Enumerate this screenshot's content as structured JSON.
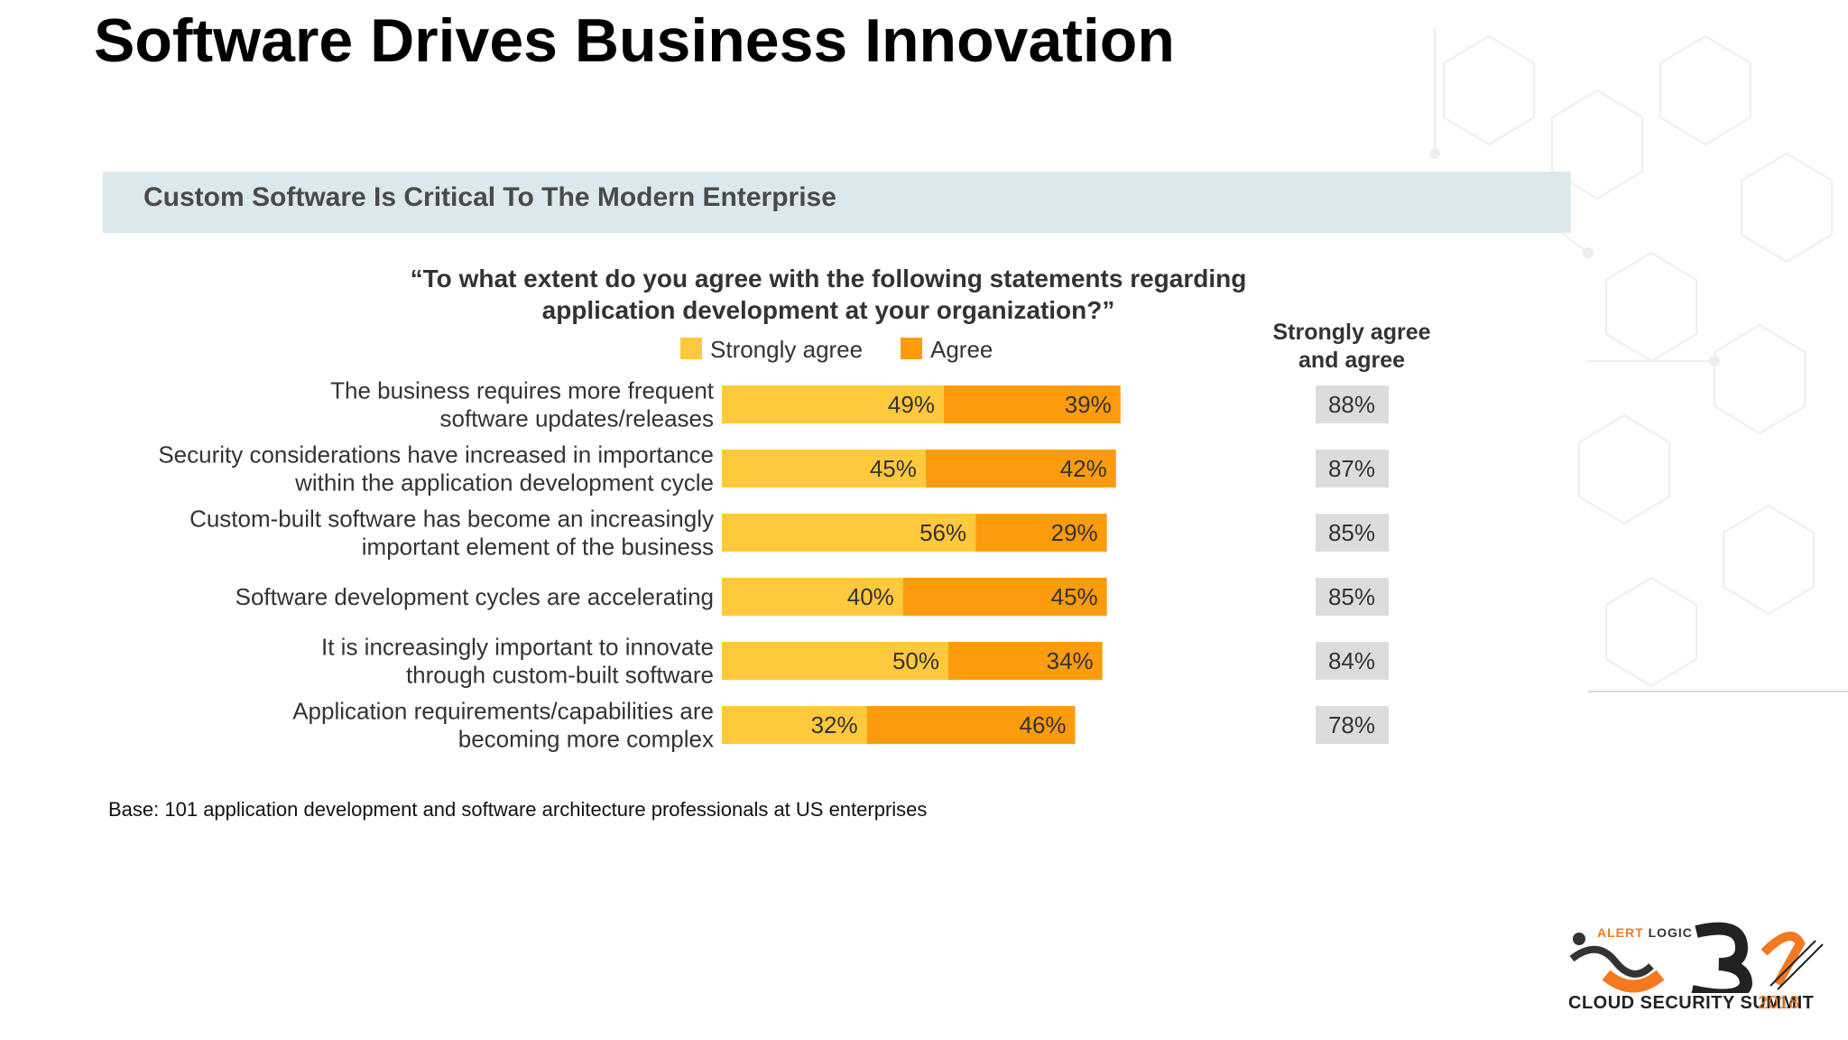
{
  "page": {
    "title": "Software Drives Business Innovation"
  },
  "chart_header": "Custom Software Is Critical To The Modern Enterprise",
  "footnote": "Base: 101 application development and software architecture professionals at US enterprises",
  "brand": {
    "name_part1": "ALERT",
    "name_part2": "LOGIC",
    "tagline": "CLOUD SECURITY SUMMIT",
    "year": "2018"
  },
  "colors": {
    "strongly_agree": "#ffc83d",
    "agree": "#fc9c0d",
    "total_box": "#dcdcdc",
    "header_band": "#dce9ec"
  },
  "chart_data": {
    "type": "bar",
    "orientation": "horizontal",
    "stacked": true,
    "question_lines": [
      "“To what extent do you agree with the following statements regarding",
      "application development at your organization?”"
    ],
    "total_header_lines": [
      "Strongly agree",
      "and agree"
    ],
    "value_suffix": "%",
    "categories": [
      [
        "The business requires more frequent",
        "software updates/releases"
      ],
      [
        "Security considerations have increased in importance",
        "within the application development cycle"
      ],
      [
        "Custom-built software has become an increasingly",
        "important element of the business"
      ],
      [
        "Software development cycles are accelerating"
      ],
      [
        "It is increasingly important to innovate",
        "through custom-built software"
      ],
      [
        "Application requirements/capabilities are",
        "becoming more complex"
      ]
    ],
    "series": [
      {
        "name": "Strongly agree",
        "values": [
          49,
          45,
          56,
          40,
          50,
          32
        ]
      },
      {
        "name": "Agree",
        "values": [
          39,
          42,
          29,
          45,
          34,
          46
        ]
      }
    ],
    "totals": [
      88,
      87,
      85,
      85,
      84,
      78
    ],
    "xlim": [
      0,
      100
    ],
    "legend_position": "top",
    "grid": false
  }
}
